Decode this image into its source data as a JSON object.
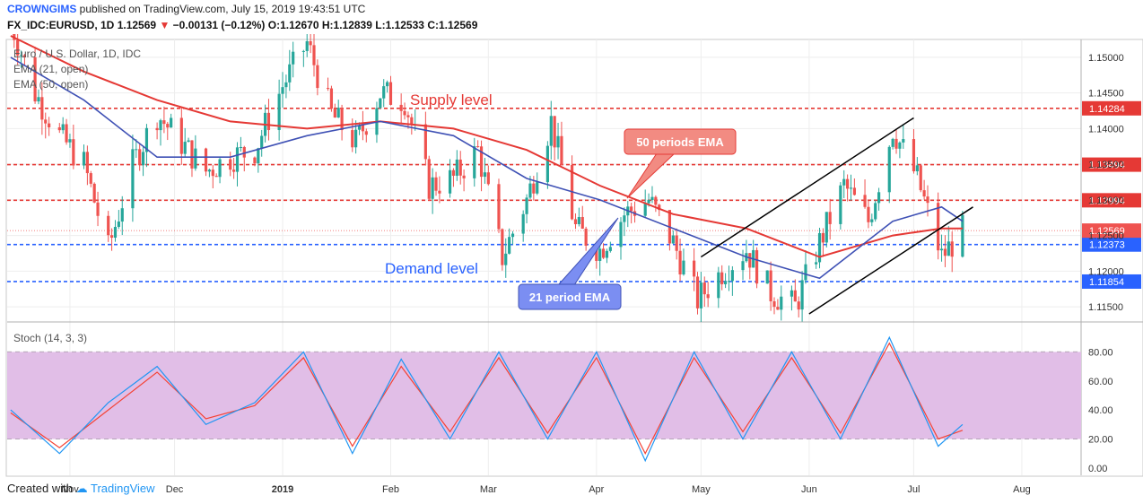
{
  "header": {
    "user": "CROWNGIMS",
    "published": "published on TradingView.com, July 15, 2019 19:43:51 UTC",
    "symbol": "FX_IDC:EURUSD, 1D",
    "last": "1.12569",
    "change": "−0.00131 (−0.12%)",
    "o_label": "O:",
    "o": "1.12670",
    "h_label": "H:",
    "h": "1.12839",
    "l_label": "L:",
    "l": "1.12533",
    "c_label": "C:",
    "c": "1.12569"
  },
  "footer": {
    "created": "Created with",
    "brand": "TradingView"
  },
  "colors": {
    "up": "#26a69a",
    "down": "#ef5350",
    "ema21": "#3f51b5",
    "ema50": "#e53935",
    "supply": "#e53935",
    "demand": "#2962ff",
    "stoch_k": "#2196f3",
    "stoch_d": "#f44336",
    "stoch_band": "#e1bee7"
  },
  "chart_data": [
    {
      "type": "candlestick",
      "title": "Euro / U.S. Dollar, 1D, IDC",
      "legend": [
        "EMA (21, open)",
        "EMA (50, open)"
      ],
      "ylim": [
        1.113,
        1.1525
      ],
      "y_ticks": [
        "1.15000",
        "1.14500",
        "1.14000",
        "1.13500",
        "1.13000",
        "1.12500",
        "1.12000",
        "1.11500"
      ],
      "x_ticks": [
        "Nov",
        "Dec",
        "2019",
        "Feb",
        "Mar",
        "Apr",
        "May",
        "Jun",
        "Jul",
        "Aug"
      ],
      "price_levels": [
        {
          "value": 1.14284,
          "label": "1.14284",
          "kind": "supply"
        },
        {
          "value": 1.13494,
          "label": "1.13494",
          "kind": "supply"
        },
        {
          "value": 1.12994,
          "label": "1.12994",
          "kind": "supply"
        },
        {
          "value": 1.12373,
          "label": "1.12373",
          "kind": "demand"
        },
        {
          "value": 1.11854,
          "label": "1.11854",
          "kind": "demand"
        }
      ],
      "last_price": {
        "value": 1.12569,
        "label": "1.12569"
      },
      "annotations": {
        "supply": "Supply level",
        "demand": "Demand level",
        "ema50": "50 periods EMA",
        "ema21": "21 period EMA"
      },
      "close_path": [
        [
          "2018-10-15",
          1.155
        ],
        [
          "2018-10-22",
          1.145
        ],
        [
          "2018-10-29",
          1.139
        ],
        [
          "2018-11-05",
          1.135
        ],
        [
          "2018-11-12",
          1.123
        ],
        [
          "2018-11-19",
          1.135
        ],
        [
          "2018-11-26",
          1.142
        ],
        [
          "2018-12-03",
          1.138
        ],
        [
          "2018-12-10",
          1.134
        ],
        [
          "2018-12-17",
          1.136
        ],
        [
          "2018-12-24",
          1.137
        ],
        [
          "2019-01-01",
          1.146
        ],
        [
          "2019-01-08",
          1.152
        ],
        [
          "2019-01-15",
          1.142
        ],
        [
          "2019-01-22",
          1.138
        ],
        [
          "2019-01-29",
          1.145
        ],
        [
          "2019-02-05",
          1.144
        ],
        [
          "2019-02-12",
          1.132
        ],
        [
          "2019-02-19",
          1.133
        ],
        [
          "2019-02-26",
          1.137
        ],
        [
          "2019-03-05",
          1.122
        ],
        [
          "2019-03-12",
          1.13
        ],
        [
          "2019-03-19",
          1.141
        ],
        [
          "2019-03-26",
          1.126
        ],
        [
          "2019-04-02",
          1.123
        ],
        [
          "2019-04-09",
          1.128
        ],
        [
          "2019-04-16",
          1.13
        ],
        [
          "2019-04-23",
          1.124
        ],
        [
          "2019-04-30",
          1.116
        ],
        [
          "2019-05-07",
          1.12
        ],
        [
          "2019-05-14",
          1.123
        ],
        [
          "2019-05-21",
          1.117
        ],
        [
          "2019-05-28",
          1.115
        ],
        [
          "2019-06-04",
          1.124
        ],
        [
          "2019-06-11",
          1.132
        ],
        [
          "2019-06-18",
          1.127
        ],
        [
          "2019-06-25",
          1.14
        ],
        [
          "2019-07-02",
          1.133
        ],
        [
          "2019-07-09",
          1.122
        ],
        [
          "2019-07-15",
          1.1257
        ]
      ],
      "ema21_path": [
        [
          "2018-10-15",
          1.15
        ],
        [
          "2018-11-05",
          1.144
        ],
        [
          "2018-11-26",
          1.136
        ],
        [
          "2018-12-17",
          1.136
        ],
        [
          "2019-01-08",
          1.139
        ],
        [
          "2019-01-29",
          1.141
        ],
        [
          "2019-02-19",
          1.139
        ],
        [
          "2019-03-12",
          1.133
        ],
        [
          "2019-04-02",
          1.13
        ],
        [
          "2019-04-23",
          1.126
        ],
        [
          "2019-05-14",
          1.122
        ],
        [
          "2019-06-04",
          1.119
        ],
        [
          "2019-06-25",
          1.127
        ],
        [
          "2019-07-09",
          1.129
        ],
        [
          "2019-07-15",
          1.127
        ]
      ],
      "ema50_path": [
        [
          "2018-10-15",
          1.153
        ],
        [
          "2018-11-05",
          1.148
        ],
        [
          "2018-11-26",
          1.144
        ],
        [
          "2018-12-17",
          1.141
        ],
        [
          "2019-01-08",
          1.14
        ],
        [
          "2019-01-29",
          1.141
        ],
        [
          "2019-02-19",
          1.14
        ],
        [
          "2019-03-12",
          1.137
        ],
        [
          "2019-04-02",
          1.132
        ],
        [
          "2019-04-23",
          1.128
        ],
        [
          "2019-05-14",
          1.126
        ],
        [
          "2019-06-04",
          1.122
        ],
        [
          "2019-06-25",
          1.125
        ],
        [
          "2019-07-09",
          1.126
        ],
        [
          "2019-07-15",
          1.126
        ]
      ],
      "channel": {
        "upper": [
          [
            "2019-05-01",
            1.122
          ],
          [
            "2019-07-01",
            1.1415
          ]
        ],
        "lower": [
          [
            "2019-06-01",
            1.114
          ],
          [
            "2019-07-18",
            1.129
          ]
        ]
      }
    },
    {
      "type": "line",
      "title": "Stoch (14, 3, 3)",
      "ylim": [
        -5,
        100
      ],
      "y_ticks": [
        "80.00",
        "60.00",
        "40.00",
        "20.00",
        "0.00"
      ],
      "band": [
        20,
        80
      ],
      "k_path": [
        [
          "2018-10-15",
          40
        ],
        [
          "2018-10-29",
          10
        ],
        [
          "2018-11-12",
          45
        ],
        [
          "2018-11-26",
          70
        ],
        [
          "2018-12-10",
          30
        ],
        [
          "2018-12-24",
          45
        ],
        [
          "2019-01-07",
          80
        ],
        [
          "2019-01-21",
          10
        ],
        [
          "2019-02-04",
          75
        ],
        [
          "2019-02-18",
          20
        ],
        [
          "2019-03-04",
          80
        ],
        [
          "2019-03-18",
          20
        ],
        [
          "2019-04-01",
          80
        ],
        [
          "2019-04-15",
          5
        ],
        [
          "2019-04-29",
          80
        ],
        [
          "2019-05-13",
          20
        ],
        [
          "2019-05-27",
          80
        ],
        [
          "2019-06-10",
          20
        ],
        [
          "2019-06-24",
          90
        ],
        [
          "2019-07-08",
          15
        ],
        [
          "2019-07-15",
          30
        ]
      ],
      "d_path": [
        [
          "2018-10-15",
          38
        ],
        [
          "2018-10-29",
          14
        ],
        [
          "2018-11-12",
          40
        ],
        [
          "2018-11-26",
          66
        ],
        [
          "2018-12-10",
          34
        ],
        [
          "2018-12-24",
          43
        ],
        [
          "2019-01-07",
          76
        ],
        [
          "2019-01-21",
          15
        ],
        [
          "2019-02-04",
          70
        ],
        [
          "2019-02-18",
          25
        ],
        [
          "2019-03-04",
          76
        ],
        [
          "2019-03-18",
          24
        ],
        [
          "2019-04-01",
          76
        ],
        [
          "2019-04-15",
          10
        ],
        [
          "2019-04-29",
          76
        ],
        [
          "2019-05-13",
          25
        ],
        [
          "2019-05-27",
          76
        ],
        [
          "2019-06-10",
          24
        ],
        [
          "2019-06-24",
          86
        ],
        [
          "2019-07-08",
          20
        ],
        [
          "2019-07-15",
          26
        ]
      ]
    }
  ]
}
